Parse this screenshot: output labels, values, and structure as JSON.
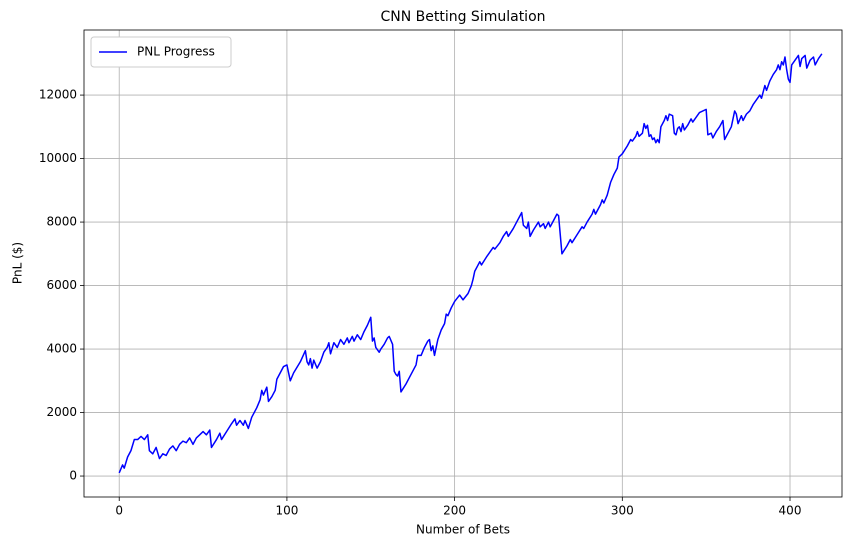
{
  "chart_data": {
    "type": "line",
    "title": "CNN Betting Simulation",
    "x_label": "Number of Bets",
    "y_label": "PnL ($)",
    "x": [
      0,
      2,
      3,
      5,
      7,
      9,
      11,
      13,
      15,
      17,
      18,
      20,
      22,
      24,
      26,
      28,
      30,
      32,
      34,
      36,
      38,
      40,
      42,
      44,
      46,
      48,
      50,
      52,
      54,
      55,
      58,
      60,
      61,
      64,
      67,
      69,
      70,
      72,
      74,
      75,
      77,
      79,
      82,
      84,
      85,
      86,
      88,
      89,
      91,
      93,
      94,
      96,
      98,
      100,
      102,
      104,
      108,
      111,
      112,
      113,
      114,
      115,
      116,
      118,
      120,
      122,
      124,
      125,
      126,
      128,
      130,
      132,
      134,
      136,
      137,
      139,
      140,
      142,
      144,
      146,
      148,
      150,
      151,
      152,
      153,
      155,
      156,
      158,
      160,
      161,
      163,
      164,
      165,
      166,
      167,
      168,
      171,
      174,
      177,
      178,
      180,
      182,
      184,
      185,
      186,
      187,
      188,
      190,
      192,
      194,
      195,
      196,
      198,
      200,
      203,
      205,
      208,
      210,
      211,
      212,
      214,
      215,
      216,
      219,
      221,
      223,
      224,
      227,
      229,
      231,
      232,
      235,
      237,
      239,
      240,
      241,
      243,
      244,
      245,
      247,
      250,
      251,
      253,
      254,
      256,
      257,
      259,
      261,
      262,
      264,
      267,
      269,
      270,
      273,
      276,
      277,
      279,
      282,
      283,
      284,
      287,
      288,
      289,
      291,
      293,
      295,
      297,
      298,
      300,
      303,
      305,
      306,
      308,
      309,
      310,
      312,
      313,
      314,
      315,
      316,
      317,
      318,
      319,
      320,
      321,
      322,
      323,
      325,
      326,
      327,
      328,
      330,
      331,
      332,
      333,
      334,
      335,
      336,
      337,
      339,
      341,
      342,
      344,
      346,
      350,
      351,
      353,
      354,
      356,
      358,
      360,
      361,
      363,
      365,
      367,
      368,
      369,
      371,
      372,
      374,
      376,
      378,
      380,
      382,
      383,
      385,
      386,
      388,
      390,
      392,
      393,
      394,
      395,
      396,
      397,
      398,
      399,
      400,
      401,
      403,
      405,
      406,
      407,
      409,
      410,
      412,
      414,
      415,
      417,
      419
    ],
    "series": [
      {
        "name": "PNL Progress",
        "color": "#0000ff",
        "values": [
          100,
          350,
          250,
          600,
          800,
          1150,
          1150,
          1250,
          1150,
          1300,
          800,
          700,
          900,
          550,
          700,
          650,
          850,
          950,
          800,
          1000,
          1100,
          1050,
          1200,
          1000,
          1200,
          1300,
          1400,
          1300,
          1450,
          900,
          1150,
          1350,
          1150,
          1400,
          1650,
          1800,
          1600,
          1750,
          1600,
          1750,
          1500,
          1850,
          2150,
          2400,
          2700,
          2550,
          2800,
          2350,
          2500,
          2700,
          3050,
          3250,
          3450,
          3500,
          3000,
          3250,
          3600,
          3950,
          3600,
          3500,
          3700,
          3400,
          3650,
          3400,
          3600,
          3900,
          4050,
          4200,
          3850,
          4200,
          4050,
          4300,
          4150,
          4350,
          4200,
          4400,
          4250,
          4450,
          4300,
          4550,
          4750,
          5000,
          4250,
          4350,
          4050,
          3900,
          4000,
          4150,
          4350,
          4400,
          4150,
          3300,
          3200,
          3150,
          3300,
          2650,
          2900,
          3200,
          3500,
          3800,
          3800,
          4050,
          4250,
          4300,
          3950,
          4100,
          3800,
          4300,
          4600,
          4800,
          5100,
          5050,
          5300,
          5500,
          5700,
          5550,
          5750,
          6000,
          6200,
          6450,
          6650,
          6750,
          6650,
          6900,
          7050,
          7200,
          7150,
          7350,
          7550,
          7700,
          7550,
          7800,
          8000,
          8200,
          8300,
          7900,
          7800,
          8000,
          7550,
          7750,
          8000,
          7850,
          7950,
          7800,
          8000,
          7850,
          8050,
          8250,
          8200,
          7000,
          7250,
          7450,
          7350,
          7600,
          7850,
          7800,
          8000,
          8250,
          8400,
          8250,
          8550,
          8700,
          8600,
          8850,
          9250,
          9500,
          9700,
          10050,
          10150,
          10400,
          10600,
          10550,
          10700,
          10850,
          10700,
          10800,
          11100,
          10950,
          11050,
          10700,
          10750,
          10600,
          10650,
          10500,
          10600,
          10500,
          11000,
          11200,
          11350,
          11200,
          11400,
          11350,
          10800,
          10750,
          10950,
          11000,
          10850,
          11100,
          10900,
          11050,
          11250,
          11150,
          11300,
          11450,
          11550,
          10750,
          10800,
          10650,
          10850,
          11000,
          11200,
          10600,
          10800,
          11000,
          11500,
          11400,
          11100,
          11350,
          11200,
          11400,
          11500,
          11700,
          11850,
          12000,
          11900,
          12300,
          12150,
          12450,
          12650,
          12800,
          12950,
          12800,
          13050,
          12950,
          13200,
          12800,
          12500,
          12400,
          12950,
          13100,
          13250,
          12900,
          13150,
          13250,
          12850,
          13100,
          13200,
          12950,
          13150,
          13300
        ]
      }
    ],
    "xlim": [
      -21,
      431
    ],
    "ylim": [
      -660,
      14050
    ],
    "xticks": [
      0,
      100,
      200,
      300,
      400
    ],
    "yticks": [
      0,
      2000,
      4000,
      6000,
      8000,
      10000,
      12000
    ],
    "grid": true,
    "legend": "upper left"
  }
}
